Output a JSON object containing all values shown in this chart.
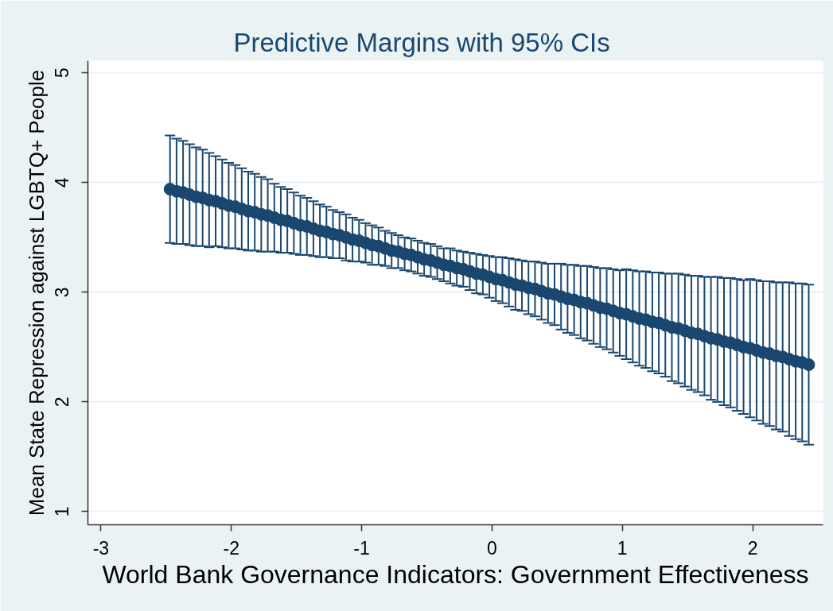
{
  "chart_data": {
    "type": "scatter",
    "title": "Predictive Margins with 95% CIs",
    "xlabel": "World Bank Governance Indicators: Government Effectiveness",
    "ylabel": "Mean State Repression against LGBTQ+ People",
    "x": [
      -2.47,
      -2.42,
      -2.37,
      -2.32,
      -2.27,
      -2.22,
      -2.17,
      -2.12,
      -2.07,
      -2.02,
      -1.97,
      -1.92,
      -1.87,
      -1.82,
      -1.77,
      -1.72,
      -1.67,
      -1.62,
      -1.57,
      -1.52,
      -1.47,
      -1.42,
      -1.37,
      -1.32,
      -1.27,
      -1.22,
      -1.17,
      -1.12,
      -1.07,
      -1.02,
      -0.97,
      -0.92,
      -0.87,
      -0.82,
      -0.77,
      -0.72,
      -0.67,
      -0.62,
      -0.57,
      -0.52,
      -0.47,
      -0.42,
      -0.37,
      -0.32,
      -0.27,
      -0.22,
      -0.17,
      -0.12,
      -0.07,
      -0.02,
      0.03,
      0.08,
      0.13,
      0.18,
      0.23,
      0.28,
      0.33,
      0.38,
      0.43,
      0.48,
      0.53,
      0.58,
      0.63,
      0.68,
      0.73,
      0.78,
      0.83,
      0.88,
      0.93,
      0.98,
      1.03,
      1.08,
      1.13,
      1.18,
      1.23,
      1.28,
      1.33,
      1.38,
      1.43,
      1.48,
      1.53,
      1.58,
      1.63,
      1.68,
      1.73,
      1.78,
      1.83,
      1.88,
      1.93,
      1.98,
      2.03,
      2.08,
      2.13,
      2.18,
      2.23,
      2.28,
      2.33,
      2.38,
      2.43
    ],
    "values": [
      3.94,
      3.92,
      3.91,
      3.89,
      3.87,
      3.86,
      3.84,
      3.83,
      3.81,
      3.79,
      3.78,
      3.76,
      3.74,
      3.73,
      3.71,
      3.7,
      3.68,
      3.66,
      3.65,
      3.63,
      3.61,
      3.6,
      3.58,
      3.56,
      3.55,
      3.53,
      3.52,
      3.5,
      3.48,
      3.47,
      3.45,
      3.43,
      3.42,
      3.4,
      3.38,
      3.37,
      3.35,
      3.34,
      3.32,
      3.3,
      3.29,
      3.27,
      3.25,
      3.24,
      3.22,
      3.21,
      3.19,
      3.17,
      3.16,
      3.14,
      3.12,
      3.11,
      3.09,
      3.07,
      3.06,
      3.04,
      3.03,
      3.01,
      2.99,
      2.98,
      2.96,
      2.94,
      2.93,
      2.91,
      2.9,
      2.88,
      2.86,
      2.85,
      2.83,
      2.81,
      2.8,
      2.78,
      2.76,
      2.75,
      2.73,
      2.72,
      2.7,
      2.68,
      2.67,
      2.65,
      2.63,
      2.62,
      2.6,
      2.58,
      2.57,
      2.55,
      2.54,
      2.52,
      2.5,
      2.49,
      2.47,
      2.45,
      2.44,
      2.42,
      2.41,
      2.39,
      2.37,
      2.36,
      2.34
    ],
    "errors": [
      0.49,
      0.48,
      0.47,
      0.46,
      0.45,
      0.44,
      0.43,
      0.41,
      0.4,
      0.39,
      0.38,
      0.37,
      0.36,
      0.35,
      0.34,
      0.33,
      0.31,
      0.3,
      0.29,
      0.28,
      0.27,
      0.26,
      0.25,
      0.24,
      0.23,
      0.22,
      0.21,
      0.21,
      0.2,
      0.19,
      0.18,
      0.18,
      0.17,
      0.16,
      0.16,
      0.15,
      0.15,
      0.15,
      0.15,
      0.15,
      0.15,
      0.15,
      0.15,
      0.16,
      0.16,
      0.16,
      0.17,
      0.18,
      0.18,
      0.19,
      0.2,
      0.21,
      0.22,
      0.23,
      0.23,
      0.24,
      0.25,
      0.26,
      0.27,
      0.28,
      0.3,
      0.31,
      0.32,
      0.33,
      0.34,
      0.35,
      0.36,
      0.37,
      0.38,
      0.39,
      0.41,
      0.42,
      0.43,
      0.44,
      0.45,
      0.46,
      0.47,
      0.49,
      0.5,
      0.51,
      0.52,
      0.53,
      0.54,
      0.56,
      0.57,
      0.58,
      0.59,
      0.6,
      0.61,
      0.63,
      0.64,
      0.65,
      0.66,
      0.67,
      0.68,
      0.7,
      0.71,
      0.72,
      0.73
    ],
    "color": "#1a476f",
    "marker": "circle",
    "xlim": [
      -3.1,
      2.54
    ],
    "ylim": [
      0.88,
      5.11
    ],
    "xticks": [
      -3,
      -2,
      -1,
      0,
      1,
      2
    ],
    "yticks": [
      1,
      2,
      3,
      4,
      5
    ],
    "grid": "y"
  }
}
